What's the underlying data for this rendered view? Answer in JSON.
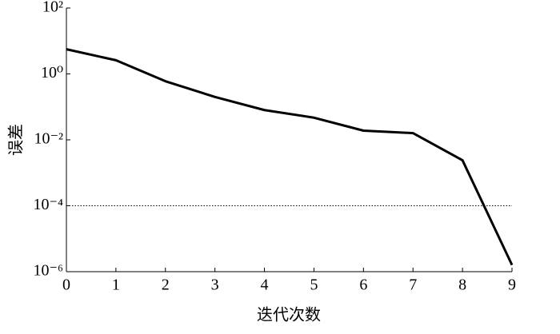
{
  "chart_data": {
    "type": "line",
    "xlabel": "迭代次数",
    "ylabel": "误差",
    "x": [
      0,
      1,
      2,
      3,
      4,
      5,
      6,
      7,
      8,
      9
    ],
    "series": [
      {
        "color": "#000000",
        "values": [
          5.6,
          2.6,
          0.6,
          0.2,
          0.08,
          0.047,
          0.019,
          0.016,
          0.0024,
          1.6e-06
        ]
      }
    ],
    "xlim": [
      0,
      9
    ],
    "xticks": [
      0,
      1,
      2,
      3,
      4,
      5,
      6,
      7,
      8,
      9
    ],
    "ylog": true,
    "ylim": [
      1e-06,
      100
    ],
    "yticks": [
      {
        "value": 1e-06,
        "label": "10⁻⁶"
      },
      {
        "value": 0.0001,
        "label": "10⁻⁴"
      },
      {
        "value": 0.01,
        "label": "10⁻²"
      },
      {
        "value": 1,
        "label": "10⁰"
      },
      {
        "value": 100,
        "label": "10²"
      }
    ],
    "hline": 0.0001,
    "grid": false
  }
}
